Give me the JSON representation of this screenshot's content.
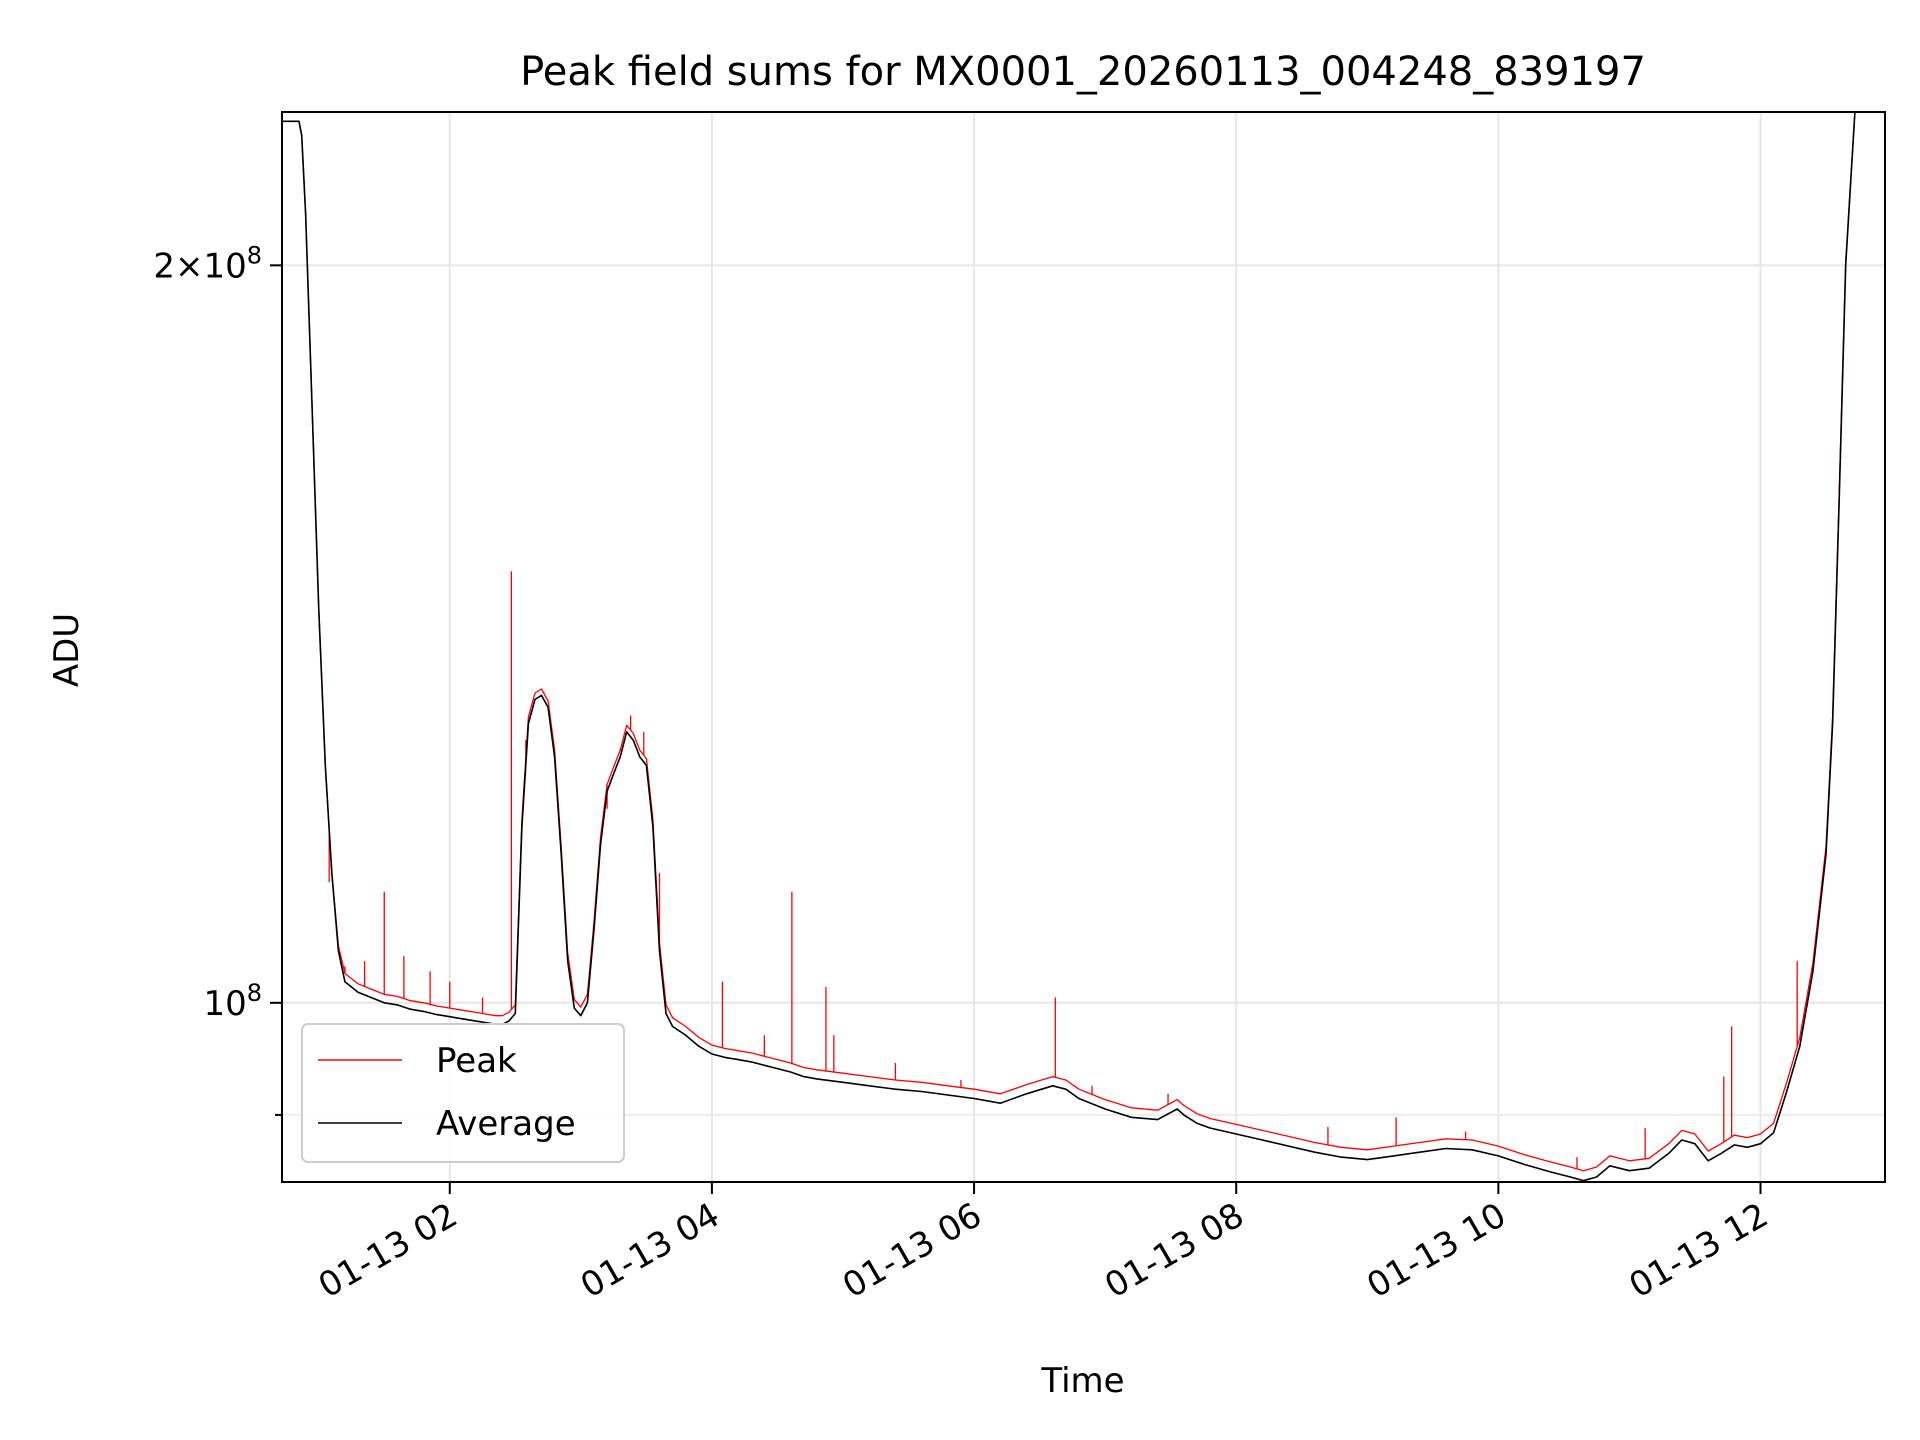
{
  "chart_data": {
    "type": "line",
    "title": "Peak field sums for MX0001_20260113_004248_839197",
    "xlabel": "Time",
    "ylabel": "ADU",
    "x_unit": "hours since 2026-01-13 00:00",
    "xlim": [
      0.72,
      12.95
    ],
    "ylim": [
      84500000,
      231000000
    ],
    "yscale": "log",
    "grid": true,
    "legend_position": "lower-left",
    "x_ticks": [
      {
        "value": 2,
        "label": "01-13 02"
      },
      {
        "value": 4,
        "label": "01-13 04"
      },
      {
        "value": 6,
        "label": "01-13 06"
      },
      {
        "value": 8,
        "label": "01-13 08"
      },
      {
        "value": 10,
        "label": "01-13 10"
      },
      {
        "value": 12,
        "label": "01-13 12"
      }
    ],
    "y_ticks_major": [
      {
        "value": 100000000,
        "base": "10",
        "exp": "8",
        "coef": ""
      },
      {
        "value": 200000000,
        "base": "10",
        "exp": "8",
        "coef": "2×"
      }
    ],
    "y_ticks_minor": [
      90000000
    ],
    "series": [
      {
        "name": "Average",
        "color": "#000000",
        "x": [
          0.72,
          0.85,
          0.87,
          0.9,
          0.95,
          1.0,
          1.05,
          1.1,
          1.15,
          1.2,
          1.25,
          1.3,
          1.4,
          1.5,
          1.6,
          1.7,
          1.8,
          1.9,
          2.0,
          2.1,
          2.2,
          2.3,
          2.35,
          2.4,
          2.45,
          2.5,
          2.55,
          2.6,
          2.65,
          2.7,
          2.75,
          2.8,
          2.85,
          2.9,
          2.95,
          3.0,
          3.05,
          3.1,
          3.15,
          3.2,
          3.25,
          3.3,
          3.35,
          3.4,
          3.45,
          3.5,
          3.55,
          3.6,
          3.65,
          3.7,
          3.8,
          3.9,
          4.0,
          4.1,
          4.2,
          4.3,
          4.4,
          4.5,
          4.6,
          4.7,
          4.8,
          5.0,
          5.2,
          5.4,
          5.6,
          5.8,
          6.0,
          6.2,
          6.4,
          6.6,
          6.7,
          6.8,
          7.0,
          7.2,
          7.4,
          7.5,
          7.55,
          7.6,
          7.7,
          7.8,
          8.0,
          8.2,
          8.4,
          8.6,
          8.8,
          9.0,
          9.2,
          9.4,
          9.6,
          9.8,
          10.0,
          10.2,
          10.4,
          10.55,
          10.65,
          10.75,
          10.85,
          11.0,
          11.15,
          11.3,
          11.4,
          11.5,
          11.6,
          11.7,
          11.8,
          11.9,
          12.0,
          12.1,
          12.2,
          12.3,
          12.4,
          12.5,
          12.55,
          12.6,
          12.65,
          12.72,
          12.8,
          12.95
        ],
        "values": [
          229000000,
          229000000,
          226000000,
          210000000,
          175000000,
          145000000,
          125000000,
          113000000,
          105000000,
          102000000,
          101500000,
          101000000,
          100500000,
          100000000,
          99800000,
          99400000,
          99200000,
          98900000,
          98700000,
          98500000,
          98300000,
          98100000,
          98000000,
          98000000,
          98300000,
          99000000,
          118000000,
          130000000,
          133000000,
          133500000,
          132000000,
          126000000,
          115000000,
          104000000,
          99500000,
          98800000,
          100000000,
          107000000,
          116000000,
          122000000,
          124000000,
          126000000,
          129000000,
          128000000,
          126000000,
          125000000,
          118000000,
          105000000,
          99000000,
          97800000,
          97000000,
          96000000,
          95300000,
          95000000,
          94800000,
          94600000,
          94300000,
          94000000,
          93700000,
          93300000,
          93100000,
          92800000,
          92500000,
          92200000,
          92000000,
          91700000,
          91400000,
          91000000,
          91800000,
          92500000,
          92200000,
          91400000,
          90500000,
          89800000,
          89600000,
          90200000,
          90500000,
          90000000,
          89300000,
          88900000,
          88400000,
          87900000,
          87400000,
          86900000,
          86500000,
          86300000,
          86600000,
          86900000,
          87200000,
          87100000,
          86600000,
          85900000,
          85300000,
          84900000,
          84600000,
          84900000,
          85800000,
          85400000,
          85600000,
          86800000,
          87900000,
          87600000,
          86200000,
          86800000,
          87500000,
          87300000,
          87600000,
          88500000,
          92000000,
          96000000,
          103000000,
          115000000,
          130000000,
          160000000,
          200000000,
          231000000,
          231000000,
          231000000
        ],
        "line_width": 1.6
      },
      {
        "name": "Peak",
        "color": "#ff0000",
        "x": [
          0.72,
          0.85,
          0.87,
          0.9,
          0.95,
          1.0,
          1.05,
          1.1,
          1.15,
          1.2,
          1.25,
          1.3,
          1.4,
          1.5,
          1.6,
          1.7,
          1.8,
          1.9,
          2.0,
          2.1,
          2.2,
          2.3,
          2.35,
          2.4,
          2.45,
          2.5,
          2.55,
          2.6,
          2.65,
          2.7,
          2.75,
          2.8,
          2.85,
          2.9,
          2.95,
          3.0,
          3.05,
          3.1,
          3.15,
          3.2,
          3.25,
          3.3,
          3.35,
          3.4,
          3.45,
          3.5,
          3.55,
          3.6,
          3.65,
          3.7,
          3.8,
          3.9,
          4.0,
          4.1,
          4.2,
          4.3,
          4.4,
          4.5,
          4.6,
          4.7,
          4.8,
          5.0,
          5.2,
          5.4,
          5.6,
          5.8,
          6.0,
          6.2,
          6.4,
          6.6,
          6.7,
          6.8,
          7.0,
          7.2,
          7.4,
          7.5,
          7.55,
          7.6,
          7.7,
          7.8,
          8.0,
          8.2,
          8.4,
          8.6,
          8.8,
          9.0,
          9.2,
          9.4,
          9.6,
          9.8,
          10.0,
          10.2,
          10.4,
          10.55,
          10.65,
          10.75,
          10.85,
          11.0,
          11.15,
          11.3,
          11.4,
          11.5,
          11.6,
          11.7,
          11.8,
          11.9,
          12.0,
          12.1,
          12.2,
          12.3,
          12.4,
          12.5,
          12.55,
          12.6,
          12.65,
          12.72,
          12.8,
          12.95
        ],
        "values": [
          229000000,
          229000000,
          226000000,
          210000000,
          175000000,
          145000000,
          125000000,
          113000000,
          105500000,
          102800000,
          102300000,
          101800000,
          101300000,
          100800000,
          100600000,
          100200000,
          100000000,
          99700000,
          99500000,
          99300000,
          99100000,
          98900000,
          98800000,
          98800000,
          99100000,
          99800000,
          118800000,
          130800000,
          133800000,
          134300000,
          132800000,
          126800000,
          115800000,
          104800000,
          100300000,
          99600000,
          100800000,
          107800000,
          116800000,
          122800000,
          124800000,
          126800000,
          129800000,
          128800000,
          126800000,
          125800000,
          118800000,
          105800000,
          99800000,
          98600000,
          97800000,
          96800000,
          96100000,
          95800000,
          95600000,
          95400000,
          95100000,
          94800000,
          94500000,
          94100000,
          93900000,
          93600000,
          93300000,
          93000000,
          92800000,
          92500000,
          92200000,
          91800000,
          92600000,
          93300000,
          93000000,
          92200000,
          91300000,
          90600000,
          90400000,
          91000000,
          91300000,
          90800000,
          90100000,
          89700000,
          89200000,
          88700000,
          88200000,
          87700000,
          87300000,
          87100000,
          87400000,
          87700000,
          88000000,
          87900000,
          87400000,
          86700000,
          86100000,
          85700000,
          85400000,
          85700000,
          86600000,
          86200000,
          86400000,
          87600000,
          88700000,
          88400000,
          87000000,
          87600000,
          88300000,
          88100000,
          88400000,
          89300000,
          92800000,
          96800000,
          103800000,
          115800000,
          130800000,
          160800000,
          200800000,
          231000000,
          231000000,
          231000000
        ],
        "spikes": [
          {
            "x": 1.08,
            "value": 112000000
          },
          {
            "x": 1.2,
            "value": 103500000
          },
          {
            "x": 1.35,
            "value": 104000000
          },
          {
            "x": 1.5,
            "value": 111000000
          },
          {
            "x": 1.65,
            "value": 104500000
          },
          {
            "x": 1.85,
            "value": 103000000
          },
          {
            "x": 2.0,
            "value": 102000000
          },
          {
            "x": 2.25,
            "value": 100500000
          },
          {
            "x": 2.47,
            "value": 150000000
          },
          {
            "x": 2.58,
            "value": 128000000
          },
          {
            "x": 3.2,
            "value": 120000000
          },
          {
            "x": 3.3,
            "value": 127000000
          },
          {
            "x": 3.38,
            "value": 131000000
          },
          {
            "x": 3.48,
            "value": 129000000
          },
          {
            "x": 3.6,
            "value": 113000000
          },
          {
            "x": 4.08,
            "value": 102000000
          },
          {
            "x": 4.4,
            "value": 97000000
          },
          {
            "x": 4.61,
            "value": 111000000
          },
          {
            "x": 4.87,
            "value": 101500000
          },
          {
            "x": 4.93,
            "value": 97000000
          },
          {
            "x": 5.4,
            "value": 94500000
          },
          {
            "x": 5.9,
            "value": 93000000
          },
          {
            "x": 6.62,
            "value": 100500000
          },
          {
            "x": 6.9,
            "value": 92500000
          },
          {
            "x": 7.48,
            "value": 91800000
          },
          {
            "x": 8.7,
            "value": 89000000
          },
          {
            "x": 9.22,
            "value": 89800000
          },
          {
            "x": 9.75,
            "value": 88600000
          },
          {
            "x": 10.6,
            "value": 86500000
          },
          {
            "x": 11.12,
            "value": 88900000
          },
          {
            "x": 11.72,
            "value": 93300000
          },
          {
            "x": 11.78,
            "value": 97800000
          },
          {
            "x": 12.28,
            "value": 104000000
          }
        ],
        "line_width": 1.3
      }
    ]
  }
}
